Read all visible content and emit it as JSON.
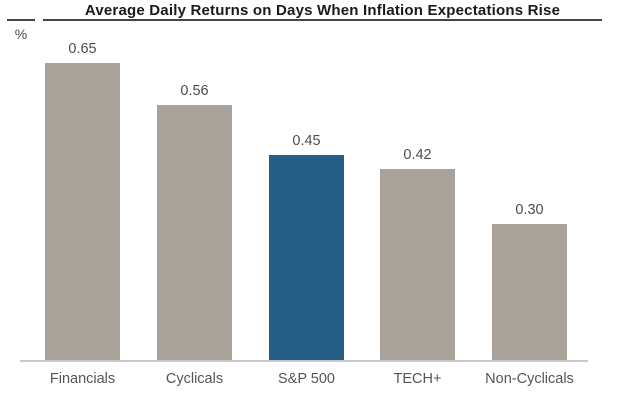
{
  "header": {
    "title": "Average Daily Returns on Days When Inflation Expectations Rise",
    "unit_label": "%"
  },
  "chart_data": {
    "type": "bar",
    "title": "Average Daily Returns on Days When Inflation Expectations Rise",
    "ylabel": "%",
    "ylim": [
      0,
      0.7
    ],
    "grid": false,
    "legend": false,
    "categories": [
      "Financials",
      "Cyclicals",
      "S&P 500",
      "TECH+",
      "Non-Cyclicals"
    ],
    "values": [
      0.65,
      0.56,
      0.45,
      0.42,
      0.3
    ],
    "value_labels": [
      "0.65",
      "0.56",
      "0.45",
      "0.42",
      "0.30"
    ],
    "highlighted_category": "S&P 500",
    "bar_colors": [
      "#A9A29B",
      "#A9A29B",
      "#275E87",
      "#A9A29B",
      "#A9A29B"
    ],
    "colors": {
      "bar_default": "#A9A29B",
      "bar_highlight": "#275E87",
      "axis_line": "#C9C9C9",
      "value_text": "#4D4D4D",
      "category_text": "#555555",
      "title_text": "#1A1A1A",
      "title_rule": "#454545"
    }
  }
}
